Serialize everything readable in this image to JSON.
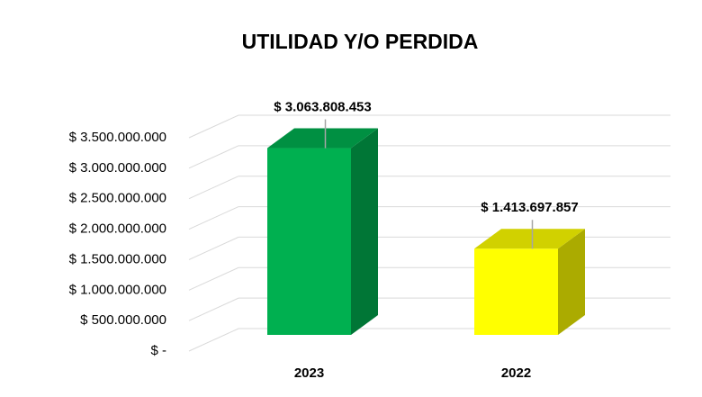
{
  "chart_data": {
    "type": "bar3d",
    "title": "UTILIDAD Y/O PERDIDA",
    "categories": [
      "2023",
      "2022"
    ],
    "values": [
      3063808453,
      1413697857
    ],
    "value_labels": [
      "$ 3.063.808.453",
      "$ 1.413.697.857"
    ],
    "colors": [
      "#00b050",
      "#ffff00"
    ],
    "ylim": [
      0,
      3500000000
    ],
    "yticks": [
      {
        "value": 0,
        "label": "$ -"
      },
      {
        "value": 500000000,
        "label": "$ 500.000.000"
      },
      {
        "value": 1000000000,
        "label": "$ 1.000.000.000"
      },
      {
        "value": 1500000000,
        "label": "$ 1.500.000.000"
      },
      {
        "value": 2000000000,
        "label": "$ 2.000.000.000"
      },
      {
        "value": 2500000000,
        "label": "$ 2.500.000.000"
      },
      {
        "value": 3000000000,
        "label": "$ 3.000.000.000"
      },
      {
        "value": 3500000000,
        "label": "$ 3.500.000.000"
      }
    ],
    "grid": true
  }
}
